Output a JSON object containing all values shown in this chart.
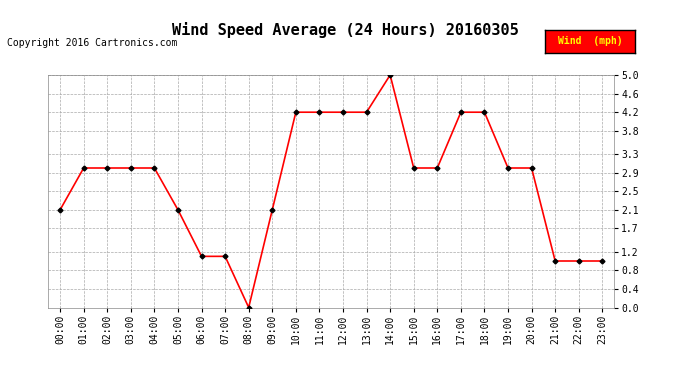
{
  "title": "Wind Speed Average (24 Hours) 20160305",
  "copyright": "Copyright 2016 Cartronics.com",
  "legend_label": "Wind  (mph)",
  "hours": [
    "00:00",
    "01:00",
    "02:00",
    "03:00",
    "04:00",
    "05:00",
    "06:00",
    "07:00",
    "08:00",
    "09:00",
    "10:00",
    "11:00",
    "12:00",
    "13:00",
    "14:00",
    "15:00",
    "16:00",
    "17:00",
    "18:00",
    "19:00",
    "20:00",
    "21:00",
    "22:00",
    "23:00"
  ],
  "values": [
    2.1,
    3.0,
    3.0,
    3.0,
    3.0,
    2.1,
    1.1,
    1.1,
    0.0,
    2.1,
    4.2,
    4.2,
    4.2,
    4.2,
    5.0,
    3.0,
    3.0,
    4.2,
    4.2,
    3.0,
    3.0,
    1.0,
    1.0,
    1.0
  ],
  "line_color": "#ff0000",
  "marker_color": "#000000",
  "background_color": "#ffffff",
  "grid_color": "#aaaaaa",
  "ylim": [
    0.0,
    5.0
  ],
  "yticks": [
    0.0,
    0.4,
    0.8,
    1.2,
    1.7,
    2.1,
    2.5,
    2.9,
    3.3,
    3.8,
    4.2,
    4.6,
    5.0
  ],
  "title_fontsize": 11,
  "copyright_fontsize": 7,
  "legend_bg": "#ff0000",
  "legend_text_color": "#ffff00",
  "legend_fontsize": 7,
  "tick_fontsize": 7
}
